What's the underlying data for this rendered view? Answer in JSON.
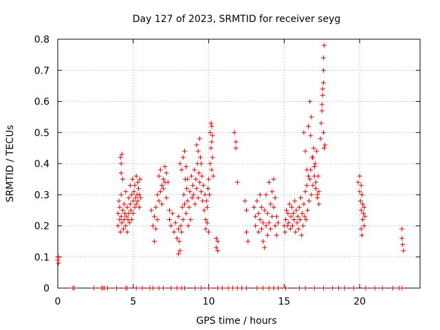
{
  "chart_data": {
    "type": "scatter",
    "title": "Day 127 of 2023, SRMTID for receiver seyg",
    "xlabel": "GPS time / hours",
    "ylabel": "SRMTID / TECUs",
    "xlim": [
      0,
      24
    ],
    "ylim": [
      0,
      0.8
    ],
    "xticks": [
      0,
      5,
      10,
      15,
      20
    ],
    "yticks": [
      0,
      0.1,
      0.2,
      0.3,
      0.4,
      0.5,
      0.6,
      0.7,
      0.8
    ],
    "grid": true,
    "marker": "+",
    "color": "#e00000",
    "series": [
      {
        "name": "SRMTID",
        "x": [
          0.0,
          0.0,
          0.05,
          0.05,
          1.0,
          1.1,
          2.4,
          2.9,
          3.0,
          3.1,
          3.3,
          3.9,
          4.5,
          4.6,
          4.0,
          4.0,
          4.05,
          4.1,
          4.1,
          4.15,
          4.2,
          4.2,
          4.25,
          4.3,
          4.3,
          4.35,
          4.4,
          4.4,
          4.45,
          4.5,
          4.5,
          4.55,
          4.6,
          4.6,
          4.65,
          4.7,
          4.7,
          4.75,
          4.8,
          4.8,
          4.85,
          4.9,
          4.9,
          4.95,
          5.0,
          5.0,
          5.05,
          5.1,
          5.1,
          5.15,
          5.2,
          5.2,
          5.25,
          5.3,
          5.3,
          5.35,
          5.4,
          5.4,
          5.45,
          5.5,
          4.15,
          4.2,
          4.2,
          4.25,
          6.2,
          6.3,
          6.4,
          6.4,
          6.5,
          6.5,
          6.6,
          6.6,
          6.7,
          6.7,
          6.8,
          6.8,
          6.9,
          6.9,
          7.0,
          7.1,
          7.2,
          7.3,
          7.4,
          7.5,
          7.6,
          7.7,
          7.8,
          7.9,
          8.0,
          8.0,
          7.0,
          7.1,
          7.2,
          7.4,
          8.0,
          8.05,
          8.1,
          8.15,
          8.2,
          8.25,
          8.3,
          8.35,
          8.4,
          8.45,
          8.5,
          8.55,
          8.6,
          8.65,
          8.7,
          8.75,
          8.8,
          8.85,
          8.9,
          8.95,
          9.0,
          9.05,
          9.1,
          9.15,
          9.2,
          9.25,
          9.3,
          9.35,
          9.4,
          9.45,
          9.5,
          9.55,
          9.6,
          9.65,
          9.7,
          9.75,
          9.8,
          9.85,
          9.9,
          9.95,
          10.0,
          10.05,
          10.1,
          10.15,
          10.2,
          10.25,
          10.3,
          8.1,
          8.2,
          8.3,
          8.4,
          8.5,
          8.6,
          9.2,
          9.3,
          9.4,
          9.5,
          9.8,
          9.9,
          10.0,
          10.1,
          10.15,
          10.2,
          10.2,
          10.25,
          10.5,
          10.6,
          10.5,
          10.6,
          11.7,
          11.8,
          11.8,
          11.9,
          12.4,
          12.5,
          12.5,
          12.6,
          13.0,
          13.1,
          13.1,
          13.2,
          13.3,
          13.3,
          13.4,
          13.4,
          13.5,
          13.5,
          13.6,
          13.6,
          13.7,
          13.7,
          13.8,
          13.8,
          13.9,
          13.9,
          14.0,
          14.0,
          14.1,
          14.1,
          14.2,
          14.2,
          14.3,
          14.3,
          14.4,
          14.4,
          14.5,
          14.5,
          14.6,
          15.0,
          15.05,
          15.1,
          15.15,
          15.2,
          15.25,
          15.3,
          15.35,
          15.4,
          15.45,
          15.5,
          15.55,
          15.6,
          15.65,
          15.7,
          15.75,
          15.8,
          15.85,
          15.9,
          15.95,
          16.0,
          16.05,
          16.1,
          16.15,
          16.2,
          16.25,
          16.3,
          16.35,
          16.4,
          16.45,
          16.5,
          16.55,
          16.6,
          16.65,
          16.7,
          16.75,
          16.8,
          16.85,
          16.9,
          16.95,
          17.0,
          17.05,
          17.1,
          17.15,
          17.2,
          17.25,
          17.3,
          16.3,
          16.4,
          16.5,
          16.6,
          16.7,
          16.75,
          16.8,
          16.9,
          17.0,
          17.1,
          17.2,
          17.3,
          17.4,
          17.45,
          17.5,
          17.5,
          17.55,
          17.55,
          17.6,
          17.6,
          17.6,
          17.65,
          17.65,
          17.6,
          17.7,
          19.9,
          20.0,
          20.0,
          20.05,
          20.1,
          20.1,
          20.15,
          20.2,
          20.2,
          20.25,
          20.3,
          20.3,
          20.35,
          20.1,
          20.15,
          22.8,
          22.8,
          22.85,
          22.9,
          5.2,
          5.6,
          6.1,
          6.3,
          6.7,
          7.0,
          7.5,
          7.9,
          8.2,
          8.4,
          9.1,
          9.5,
          10.0,
          10.6,
          10.9,
          11.3,
          11.6,
          11.9,
          12.2,
          12.5,
          13.2,
          13.6,
          14.0,
          14.3,
          14.6,
          15.1,
          16.0,
          16.4,
          17.0,
          17.6,
          18.2,
          18.6,
          19.0,
          19.6,
          20.4,
          21.0,
          21.5,
          22.2,
          22.6,
          22.8
        ],
        "y": [
          0.1,
          0.09,
          0.08,
          0.1,
          0,
          0,
          0,
          0,
          0,
          0,
          0,
          0,
          0,
          0,
          0.24,
          0.2,
          0.28,
          0.22,
          0.26,
          0.18,
          0.3,
          0.23,
          0.21,
          0.25,
          0.35,
          0.19,
          0.27,
          0.22,
          0.24,
          0.2,
          0.31,
          0.23,
          0.18,
          0.26,
          0.22,
          0.29,
          0.24,
          0.21,
          0.33,
          0.27,
          0.25,
          0.3,
          0.22,
          0.35,
          0.28,
          0.24,
          0.31,
          0.26,
          0.33,
          0.29,
          0.36,
          0.27,
          0.3,
          0.34,
          0.28,
          0.32,
          0.3,
          0.26,
          0.35,
          0.29,
          0.42,
          0.4,
          0.37,
          0.43,
          0.25,
          0.2,
          0.23,
          0.15,
          0.26,
          0.19,
          0.3,
          0.22,
          0.36,
          0.28,
          0.38,
          0.31,
          0.33,
          0.27,
          0.32,
          0.39,
          0.37,
          0.34,
          0.22,
          0.2,
          0.24,
          0.18,
          0.21,
          0.16,
          0.23,
          0.19,
          0.35,
          0.34,
          0.29,
          0.25,
          0.11,
          0.15,
          0.12,
          0.2,
          0.18,
          0.26,
          0.22,
          0.3,
          0.27,
          0.35,
          0.24,
          0.32,
          0.28,
          0.2,
          0.26,
          0.31,
          0.22,
          0.36,
          0.29,
          0.33,
          0.3,
          0.38,
          0.27,
          0.35,
          0.32,
          0.4,
          0.29,
          0.37,
          0.34,
          0.42,
          0.31,
          0.36,
          0.28,
          0.33,
          0.25,
          0.3,
          0.22,
          0.28,
          0.26,
          0.32,
          0.35,
          0.3,
          0.4,
          0.45,
          0.38,
          0.42,
          0.36,
          0.4,
          0.38,
          0.42,
          0.44,
          0.39,
          0.35,
          0.46,
          0.44,
          0.48,
          0.4,
          0.19,
          0.21,
          0.18,
          0.5,
          0.53,
          0.52,
          0.47,
          0.49,
          0.16,
          0.15,
          0.13,
          0.12,
          0.5,
          0.47,
          0.45,
          0.34,
          0.28,
          0.25,
          0.18,
          0.15,
          0.26,
          0.23,
          0.2,
          0.28,
          0.24,
          0.18,
          0.22,
          0.3,
          0.19,
          0.26,
          0.21,
          0.15,
          0.25,
          0.13,
          0.2,
          0.3,
          0.17,
          0.24,
          0.21,
          0.34,
          0.27,
          0.19,
          0.31,
          0.23,
          0.26,
          0.35,
          0.2,
          0.29,
          0.17,
          0.23,
          0.21,
          0.2,
          0.18,
          0.22,
          0.25,
          0.2,
          0.24,
          0.21,
          0.27,
          0.19,
          0.23,
          0.26,
          0.2,
          0.24,
          0.22,
          0.28,
          0.18,
          0.25,
          0.21,
          0.23,
          0.19,
          0.26,
          0.22,
          0.29,
          0.17,
          0.24,
          0.2,
          0.27,
          0.23,
          0.31,
          0.22,
          0.33,
          0.25,
          0.36,
          0.28,
          0.35,
          0.38,
          0.3,
          0.42,
          0.33,
          0.45,
          0.36,
          0.4,
          0.32,
          0.44,
          0.29,
          0.36,
          0.31,
          0.5,
          0.44,
          0.38,
          0.52,
          0.6,
          0.49,
          0.55,
          0.42,
          0.39,
          0.34,
          0.3,
          0.27,
          0.48,
          0.53,
          0.57,
          0.59,
          0.62,
          0.64,
          0.66,
          0.7,
          0.74,
          0.78,
          0.45,
          0.5,
          0.46,
          0.34,
          0.31,
          0.36,
          0.28,
          0.33,
          0.25,
          0.3,
          0.22,
          0.27,
          0.24,
          0.26,
          0.2,
          0.23,
          0.19,
          0.17,
          0.19,
          0.16,
          0.14,
          0.12,
          0,
          0,
          0,
          0,
          0,
          0,
          0,
          0,
          0,
          0,
          0,
          0,
          0,
          0,
          0,
          0,
          0,
          0,
          0,
          0,
          0,
          0,
          0,
          0,
          0,
          0,
          0,
          0,
          0,
          0,
          0,
          0,
          0,
          0,
          0,
          0,
          0,
          0,
          0,
          0
        ]
      }
    ]
  }
}
